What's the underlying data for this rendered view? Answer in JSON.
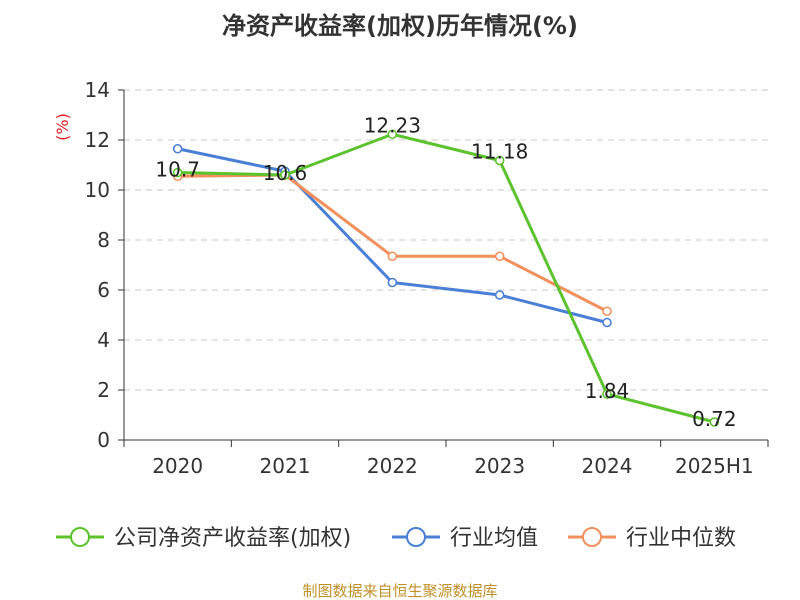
{
  "chart_data": {
    "type": "line",
    "title": "净资产收益率(加权)历年情况(%)",
    "ylabel": "(%)",
    "categories": [
      "2020",
      "2021",
      "2022",
      "2023",
      "2024",
      "2025H1"
    ],
    "ylim": [
      0,
      14
    ],
    "yticks": [
      0,
      2,
      4,
      6,
      8,
      10,
      12,
      14
    ],
    "grid": true,
    "legend_position": "bottom",
    "series": [
      {
        "name": "公司净资产收益率(加权)",
        "color": "#5cc32e",
        "values": [
          10.7,
          10.6,
          12.23,
          11.18,
          1.84,
          0.72
        ],
        "labels": [
          "10.7",
          "10.6",
          "12.23",
          "11.18",
          "1.84",
          "0.72"
        ]
      },
      {
        "name": "行业均值",
        "color": "#4a7fd6",
        "values": [
          11.65,
          10.75,
          6.3,
          5.8,
          4.7,
          null
        ]
      },
      {
        "name": "行业中位数",
        "color": "#f2905c",
        "values": [
          10.55,
          10.6,
          7.35,
          7.35,
          5.15,
          null
        ]
      }
    ]
  },
  "source": "制图数据来自恒生聚源数据库"
}
